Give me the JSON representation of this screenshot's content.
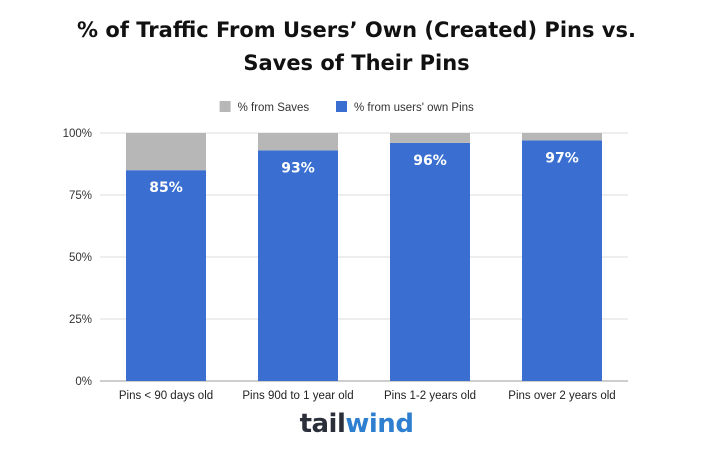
{
  "chart_data": {
    "type": "bar",
    "stacked": true,
    "title": "% of Traffic From Users’ Own (Created) Pins vs. Saves of Their Pins",
    "title_lines": [
      "% of Traffic From Users’ Own (Created) Pins vs.",
      "Saves of Their Pins"
    ],
    "xlabel": "",
    "ylabel": "",
    "ylim": [
      0,
      100
    ],
    "yticks": [
      "0%",
      "25%",
      "50%",
      "75%",
      "100%"
    ],
    "ytick_values": [
      0,
      25,
      50,
      75,
      100
    ],
    "grid": true,
    "legend_position": "top-center",
    "categories": [
      "Pins < 90 days old",
      "Pins 90d to 1 year old",
      "Pins 1-2 years old",
      "Pins over 2 years old"
    ],
    "series": [
      {
        "name": "% from users' own Pins",
        "values": [
          85,
          93,
          96,
          97
        ],
        "color": "#3a6fd1",
        "labels": [
          "85%",
          "93%",
          "96%",
          "97%"
        ]
      },
      {
        "name": "% from Saves",
        "values": [
          15,
          7,
          4,
          3
        ],
        "color": "#b7b7b7"
      }
    ],
    "legend_order": [
      1,
      0
    ]
  },
  "logo": {
    "text_dark": "tail",
    "text_accent": "wind"
  }
}
